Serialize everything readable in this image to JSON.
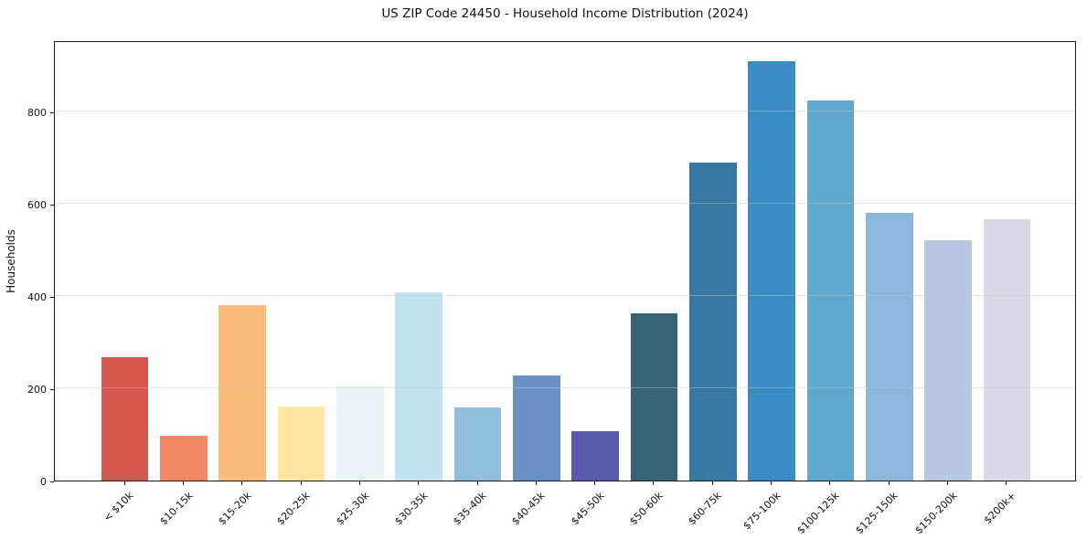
{
  "chart_data": {
    "type": "bar",
    "title": "US ZIP Code 24450 - Household Income Distribution (2024)",
    "xlabel": "",
    "ylabel": "Households",
    "categories": [
      "< $10k",
      "$10-15k",
      "$15-20k",
      "$20-25k",
      "$25-30k",
      "$30-35k",
      "$35-40k",
      "$40-45k",
      "$45-50k",
      "$50-60k",
      "$60-75k",
      "$75-100k",
      "$100-125k",
      "$125-150k",
      "$150-200k",
      "$200k+"
    ],
    "values": [
      268,
      98,
      381,
      161,
      207,
      409,
      159,
      228,
      108,
      362,
      690,
      910,
      824,
      581,
      522,
      567
    ],
    "bar_colors": [
      "#d6574f",
      "#f08765",
      "#fabc7d",
      "#fde5a4",
      "#e8f4f6",
      "#c1e2ee",
      "#91bedd",
      "#6b90c6",
      "#5a5aab",
      "#386375",
      "#3779a1",
      "#398dc4",
      "#5fa7cd",
      "#8cb7da",
      "#b8c8e2",
      "#d7d9e6"
    ],
    "ylim": [
      0,
      955
    ],
    "yticks": [
      0,
      200,
      400,
      600,
      800
    ],
    "grid": "horizontal-above-bars",
    "gridline_color": "#e5e5e5",
    "legend": "none",
    "x_tick_rotation": 45,
    "background": "#ffffff",
    "spine_color": "#1a1a1a"
  }
}
